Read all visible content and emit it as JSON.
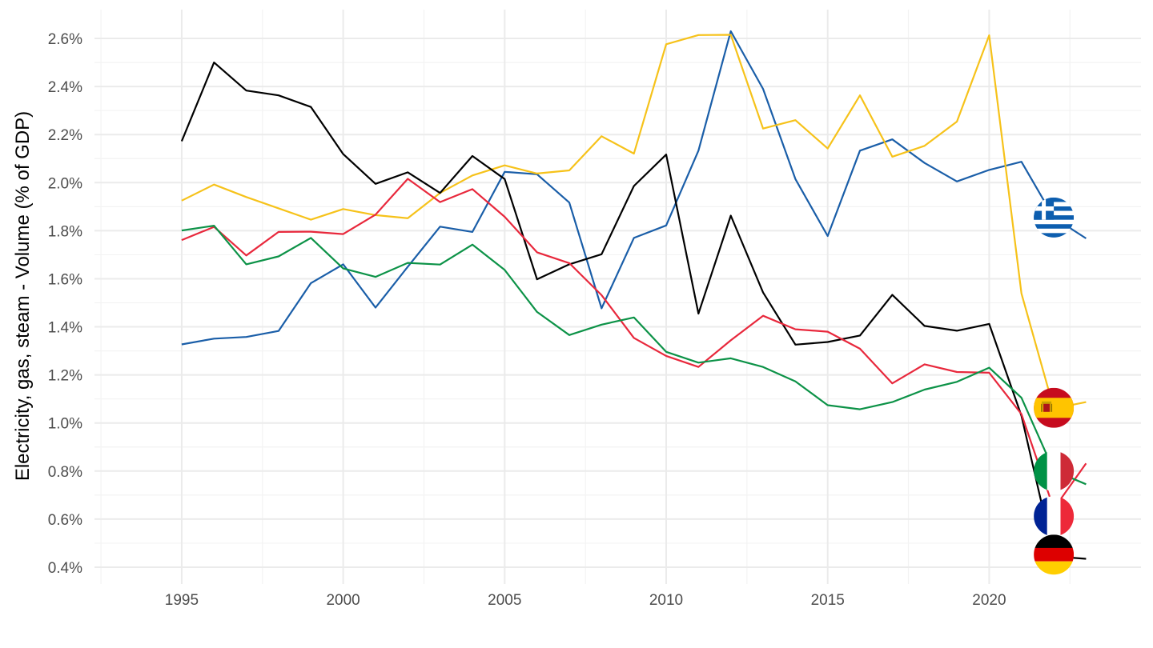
{
  "chart_data": {
    "type": "line",
    "title": "",
    "xlabel": "",
    "ylabel": "Electricity, gas, steam - Volume (% of GDP)",
    "xlim": [
      1992.3,
      2024.7
    ],
    "ylim": [
      0.33,
      2.72
    ],
    "x_ticks": [
      1995,
      2000,
      2005,
      2010,
      2015,
      2020
    ],
    "x_tick_labels": [
      "1995",
      "2000",
      "2005",
      "2010",
      "2015",
      "2020"
    ],
    "y_ticks": [
      0.4,
      0.6,
      0.8,
      1.0,
      1.2,
      1.4,
      1.6,
      1.8,
      2.0,
      2.2,
      2.4,
      2.6
    ],
    "y_tick_labels": [
      "0.4%",
      "0.6%",
      "0.8%",
      "1.0%",
      "1.2%",
      "1.4%",
      "1.6%",
      "1.8%",
      "2.0%",
      "2.2%",
      "2.4%",
      "2.6%"
    ],
    "grid": true,
    "legend": "flag markers at right end of lines",
    "x": [
      1995,
      1996,
      1997,
      1998,
      1999,
      2000,
      2001,
      2002,
      2003,
      2004,
      2005,
      2006,
      2007,
      2008,
      2009,
      2010,
      2011,
      2012,
      2013,
      2014,
      2015,
      2016,
      2017,
      2018,
      2019,
      2020,
      2021,
      2022,
      2023
    ],
    "series": [
      {
        "flag": "greece",
        "color": "#1a5ea8",
        "values": [
          1.327,
          1.351,
          1.358,
          1.383,
          1.582,
          1.66,
          1.48,
          1.65,
          1.817,
          1.795,
          2.045,
          2.035,
          1.917,
          1.477,
          1.77,
          1.822,
          2.133,
          2.63,
          2.39,
          2.015,
          1.778,
          2.133,
          2.18,
          2.082,
          2.005,
          2.053,
          2.087,
          1.855,
          1.768
        ]
      },
      {
        "flag": "spain",
        "color": "#f6c21a",
        "values": [
          1.925,
          1.992,
          1.94,
          1.893,
          1.846,
          1.89,
          1.865,
          1.852,
          1.957,
          2.03,
          2.072,
          2.038,
          2.051,
          2.193,
          2.121,
          2.576,
          2.614,
          2.615,
          2.225,
          2.26,
          2.142,
          2.363,
          2.108,
          2.153,
          2.254,
          2.613,
          1.539,
          1.06,
          1.087
        ]
      },
      {
        "flag": "germany",
        "color": "#000000",
        "values": [
          2.172,
          2.5,
          2.383,
          2.363,
          2.315,
          2.119,
          1.995,
          2.043,
          1.957,
          2.111,
          2.015,
          1.598,
          1.66,
          1.702,
          1.986,
          2.117,
          1.455,
          1.863,
          1.543,
          1.326,
          1.337,
          1.364,
          1.533,
          1.404,
          1.384,
          1.412,
          1.03,
          0.445,
          0.435
        ]
      },
      {
        "flag": "france",
        "color": "#e8283c",
        "values": [
          1.761,
          1.816,
          1.697,
          1.795,
          1.796,
          1.786,
          1.867,
          2.016,
          1.919,
          1.973,
          1.858,
          1.71,
          1.665,
          1.532,
          1.354,
          1.279,
          1.233,
          1.344,
          1.446,
          1.39,
          1.38,
          1.309,
          1.165,
          1.244,
          1.212,
          1.209,
          1.037,
          0.643,
          0.832
        ]
      },
      {
        "flag": "italy",
        "color": "#0c9247",
        "values": [
          1.801,
          1.821,
          1.66,
          1.693,
          1.77,
          1.643,
          1.608,
          1.666,
          1.659,
          1.742,
          1.637,
          1.462,
          1.366,
          1.409,
          1.439,
          1.296,
          1.251,
          1.269,
          1.233,
          1.173,
          1.074,
          1.057,
          1.087,
          1.139,
          1.171,
          1.23,
          1.105,
          0.802,
          0.745
        ]
      }
    ]
  }
}
